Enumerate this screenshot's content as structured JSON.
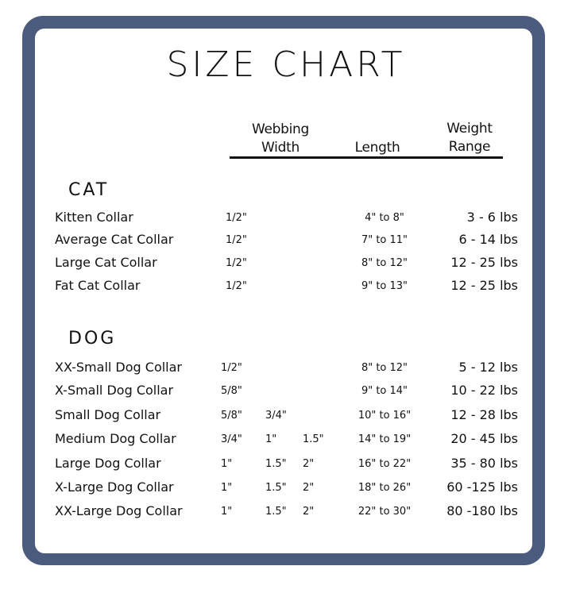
{
  "title": "SIZE CHART",
  "colors": {
    "frame": "#4b5b7e",
    "background": "#ffffff",
    "text": "#111111"
  },
  "headers": {
    "webbing_width": [
      "Webbing",
      "Width"
    ],
    "length": "Length",
    "weight_range": [
      "Weight",
      "Range"
    ]
  },
  "sections": {
    "cat": {
      "label": "CAT",
      "rows": [
        {
          "name": "Kitten Collar",
          "widths": [
            "1/2\""
          ],
          "length": "4\" to 8\"",
          "weight": "3 - 6 lbs"
        },
        {
          "name": "Average Cat Collar",
          "widths": [
            "1/2\""
          ],
          "length": "7\" to 11\"",
          "weight": "6 - 14 lbs"
        },
        {
          "name": "Large Cat Collar",
          "widths": [
            "1/2\""
          ],
          "length": "8\" to 12\"",
          "weight": "12 - 25 lbs"
        },
        {
          "name": "Fat Cat Collar",
          "widths": [
            "1/2\""
          ],
          "length": "9\" to 13\"",
          "weight": "12 - 25 lbs"
        }
      ]
    },
    "dog": {
      "label": "DOG",
      "rows": [
        {
          "name": "XX-Small Dog Collar",
          "widths": [
            "1/2\""
          ],
          "length": "8\" to 12\"",
          "weight": "5 - 12 lbs"
        },
        {
          "name": "X-Small Dog Collar",
          "widths": [
            "5/8\""
          ],
          "length": "9\" to 14\"",
          "weight": "10 - 22 lbs"
        },
        {
          "name": "Small Dog Collar",
          "widths": [
            "5/8\"",
            "3/4\""
          ],
          "length": "10\" to 16\"",
          "weight": "12 - 28 lbs"
        },
        {
          "name": "Medium Dog Collar",
          "widths": [
            "3/4\"",
            "1\"",
            "1.5\""
          ],
          "length": "14\" to 19\"",
          "weight": "20 - 45 lbs"
        },
        {
          "name": "Large Dog Collar",
          "widths": [
            "1\"",
            "1.5\"",
            "2\""
          ],
          "length": "16\" to 22\"",
          "weight": "35 - 80 lbs"
        },
        {
          "name": "X-Large Dog Collar",
          "widths": [
            "1\"",
            "1.5\"",
            "2\""
          ],
          "length": "18\" to 26\"",
          "weight": "60 -125 lbs"
        },
        {
          "name": "XX-Large Dog Collar",
          "widths": [
            "1\"",
            "1.5\"",
            "2\""
          ],
          "length": "22\" to 30\"",
          "weight": "80 -180 lbs"
        }
      ]
    }
  }
}
